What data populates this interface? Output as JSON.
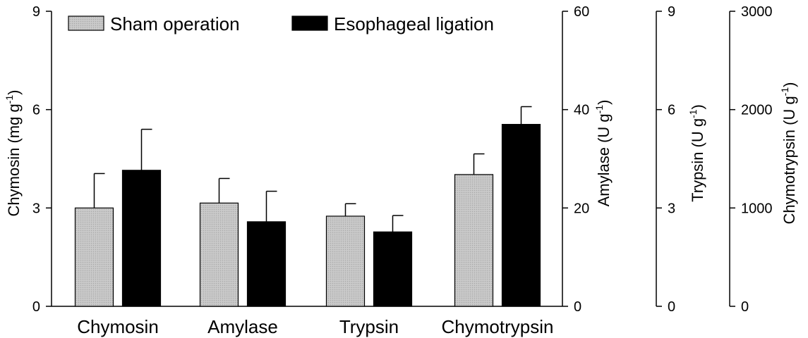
{
  "chart_data": {
    "type": "bar",
    "categories": [
      "Chymosin",
      "Amylase",
      "Trypsin",
      "Chymotrypsin"
    ],
    "series": [
      {
        "name": "Sham operation",
        "color": "#c4c4c4",
        "values": [
          3.0,
          21.0,
          2.75,
          1340
        ],
        "errors": [
          1.05,
          5.0,
          0.38,
          210
        ]
      },
      {
        "name": "Esophageal ligation",
        "color": "#000000",
        "values": [
          4.15,
          17.2,
          2.27,
          1850
        ],
        "errors": [
          1.25,
          6.2,
          0.5,
          180
        ]
      }
    ],
    "axes": [
      {
        "label": "Chymosin (mg g",
        "sup": "-1",
        "close": ")",
        "min": 0,
        "max": 9,
        "ticks": [
          0,
          3,
          6,
          9
        ],
        "side": "left"
      },
      {
        "label": "Amylase (U g",
        "sup": "-1",
        "close": ")",
        "min": 0,
        "max": 60,
        "ticks": [
          0,
          20,
          40,
          60
        ],
        "side": "right"
      },
      {
        "label": "Trypsin (U g",
        "sup": "-1",
        "close": ")",
        "min": 0,
        "max": 9,
        "ticks": [
          0,
          3,
          6,
          9
        ],
        "side": "right"
      },
      {
        "label": "Chymotrypsin (U g",
        "sup": "-1",
        "close": ")",
        "min": 0,
        "max": 3000,
        "ticks": [
          0,
          1000,
          2000,
          3000
        ],
        "side": "right"
      }
    ],
    "legend": "top-left",
    "grid": false
  }
}
